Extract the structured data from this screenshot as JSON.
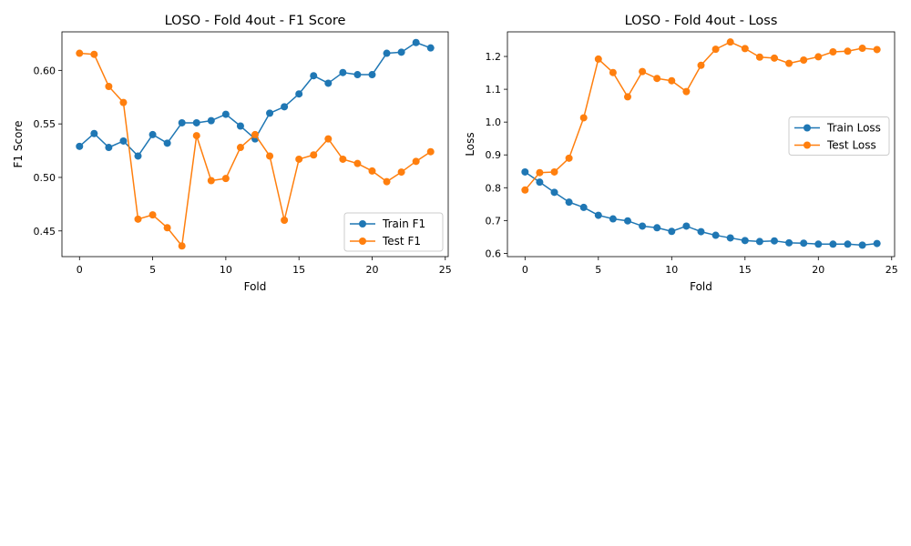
{
  "colors": {
    "train": "#1f77b4",
    "test": "#ff7f0e",
    "axis": "#000000",
    "legend_border": "#cccccc"
  },
  "chart_data": [
    {
      "type": "line",
      "title": "LOSO - Fold 4out - F1 Score",
      "xlabel": "Fold",
      "ylabel": "F1 Score",
      "xlim": [
        -1.2,
        25.2
      ],
      "ylim": [
        0.426,
        0.636
      ],
      "xticks": [
        0,
        5,
        10,
        15,
        20,
        25
      ],
      "xtick_labels": [
        "0",
        "5",
        "10",
        "15",
        "20",
        "25"
      ],
      "yticks": [
        0.45,
        0.5,
        0.55,
        0.6
      ],
      "ytick_labels": [
        "0.45",
        "0.50",
        "0.55",
        "0.60"
      ],
      "grid": false,
      "legend_position": "lower-right",
      "x": [
        0,
        1,
        2,
        3,
        4,
        5,
        6,
        7,
        8,
        9,
        10,
        11,
        12,
        13,
        14,
        15,
        16,
        17,
        18,
        19,
        20,
        21,
        22,
        23,
        24
      ],
      "series": [
        {
          "name": "Train F1",
          "color_key": "train",
          "values": [
            0.529,
            0.541,
            0.528,
            0.534,
            0.52,
            0.54,
            0.532,
            0.551,
            0.551,
            0.553,
            0.559,
            0.548,
            0.536,
            0.56,
            0.566,
            0.578,
            0.595,
            0.588,
            0.598,
            0.596,
            0.596,
            0.616,
            0.617,
            0.626,
            0.621
          ]
        },
        {
          "name": "Test F1",
          "color_key": "test",
          "values": [
            0.616,
            0.615,
            0.585,
            0.57,
            0.461,
            0.465,
            0.453,
            0.436,
            0.539,
            0.497,
            0.499,
            0.528,
            0.54,
            0.52,
            0.46,
            0.517,
            0.521,
            0.536,
            0.517,
            0.513,
            0.506,
            0.496,
            0.505,
            0.515,
            0.524
          ]
        }
      ]
    },
    {
      "type": "line",
      "title": "LOSO - Fold 4out - Loss",
      "xlabel": "Fold",
      "ylabel": "Loss",
      "xlim": [
        -1.2,
        25.2
      ],
      "ylim": [
        0.59,
        1.275
      ],
      "xticks": [
        0,
        5,
        10,
        15,
        20,
        25
      ],
      "xtick_labels": [
        "0",
        "5",
        "10",
        "15",
        "20",
        "25"
      ],
      "yticks": [
        0.6,
        0.7,
        0.8,
        0.9,
        1.0,
        1.1,
        1.2
      ],
      "ytick_labels": [
        "0.6",
        "0.7",
        "0.8",
        "0.9",
        "1.0",
        "1.1",
        "1.2"
      ],
      "grid": false,
      "legend_position": "center-right",
      "x": [
        0,
        1,
        2,
        3,
        4,
        5,
        6,
        7,
        8,
        9,
        10,
        11,
        12,
        13,
        14,
        15,
        16,
        17,
        18,
        19,
        20,
        21,
        22,
        23,
        24
      ],
      "series": [
        {
          "name": "Train Loss",
          "color_key": "train",
          "values": [
            0.848,
            0.817,
            0.786,
            0.756,
            0.74,
            0.716,
            0.705,
            0.699,
            0.683,
            0.678,
            0.667,
            0.683,
            0.666,
            0.655,
            0.647,
            0.639,
            0.636,
            0.638,
            0.632,
            0.631,
            0.628,
            0.628,
            0.628,
            0.625,
            0.63
          ]
        },
        {
          "name": "Test Loss",
          "color_key": "test",
          "values": [
            0.793,
            0.846,
            0.848,
            0.89,
            1.013,
            1.192,
            1.151,
            1.077,
            1.154,
            1.133,
            1.126,
            1.093,
            1.173,
            1.222,
            1.244,
            1.224,
            1.198,
            1.195,
            1.179,
            1.189,
            1.199,
            1.214,
            1.216,
            1.225,
            1.221
          ]
        }
      ]
    }
  ]
}
